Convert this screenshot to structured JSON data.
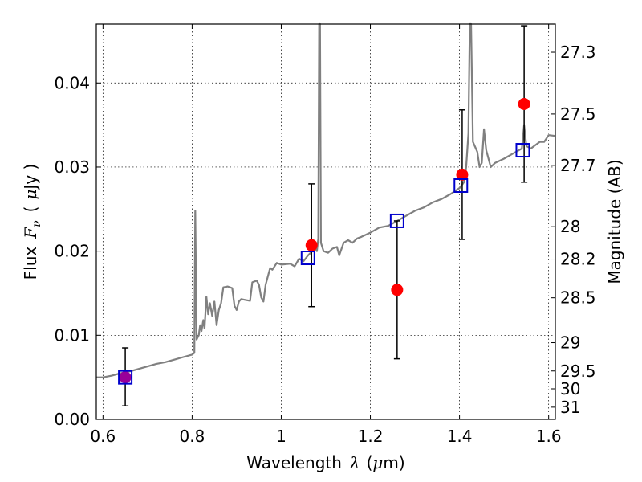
{
  "chart_data": {
    "type": "scatter",
    "xlabel_text": "Wavelength",
    "xlabel_symbol": "λ",
    "xlabel_unit_open": "(",
    "xlabel_unit_mu": "μ",
    "xlabel_unit_rest": "m)",
    "ylabel_text": "Flux",
    "ylabel_symbol": "F",
    "ylabel_subscript": "ν",
    "ylabel_unit_open": "(",
    "ylabel_unit_mu": "μ",
    "ylabel_unit_rest": "Jy )",
    "y2label": "Magnitude (AB)",
    "xlim": [
      0.585,
      1.615
    ],
    "ylim": [
      0.0,
      0.047
    ],
    "grid": true,
    "x_ticks": [
      {
        "value": 0.6,
        "label": "0.6"
      },
      {
        "value": 0.8,
        "label": "0.8"
      },
      {
        "value": 1.0,
        "label": "1"
      },
      {
        "value": 1.2,
        "label": "1.2"
      },
      {
        "value": 1.4,
        "label": "1.4"
      },
      {
        "value": 1.6,
        "label": "1.6"
      }
    ],
    "y_ticks": [
      {
        "value": 0.0,
        "label": "0.00"
      },
      {
        "value": 0.01,
        "label": "0.01"
      },
      {
        "value": 0.02,
        "label": "0.02"
      },
      {
        "value": 0.03,
        "label": "0.03"
      },
      {
        "value": 0.04,
        "label": "0.04"
      }
    ],
    "y2_ticks": [
      {
        "value": 27.3,
        "label": "27.3"
      },
      {
        "value": 27.5,
        "label": "27.5"
      },
      {
        "value": 27.7,
        "label": "27.7"
      },
      {
        "value": 28.0,
        "label": "28"
      },
      {
        "value": 28.2,
        "label": "28.2"
      },
      {
        "value": 28.5,
        "label": "28.5"
      },
      {
        "value": 29.0,
        "label": "29"
      },
      {
        "value": 29.5,
        "label": "29.5"
      },
      {
        "value": 30.0,
        "label": "30"
      },
      {
        "value": 31.0,
        "label": "31"
      }
    ],
    "spectrum": {
      "color": "#808080",
      "points": [
        [
          0.585,
          0.005
        ],
        [
          0.6,
          0.005
        ],
        [
          0.62,
          0.0052
        ],
        [
          0.64,
          0.0055
        ],
        [
          0.66,
          0.0057
        ],
        [
          0.68,
          0.006
        ],
        [
          0.7,
          0.0063
        ],
        [
          0.72,
          0.0066
        ],
        [
          0.74,
          0.0068
        ],
        [
          0.76,
          0.0071
        ],
        [
          0.78,
          0.0074
        ],
        [
          0.8,
          0.0077
        ],
        [
          0.805,
          0.0079
        ],
        [
          0.807,
          0.0248
        ],
        [
          0.81,
          0.0095
        ],
        [
          0.815,
          0.01
        ],
        [
          0.818,
          0.0112
        ],
        [
          0.821,
          0.0105
        ],
        [
          0.825,
          0.0118
        ],
        [
          0.828,
          0.0108
        ],
        [
          0.832,
          0.0146
        ],
        [
          0.836,
          0.0125
        ],
        [
          0.84,
          0.0138
        ],
        [
          0.845,
          0.0123
        ],
        [
          0.85,
          0.014
        ],
        [
          0.855,
          0.0112
        ],
        [
          0.86,
          0.013
        ],
        [
          0.865,
          0.0138
        ],
        [
          0.87,
          0.0157
        ],
        [
          0.88,
          0.0158
        ],
        [
          0.89,
          0.0156
        ],
        [
          0.895,
          0.0135
        ],
        [
          0.9,
          0.013
        ],
        [
          0.905,
          0.014
        ],
        [
          0.91,
          0.0143
        ],
        [
          0.92,
          0.0142
        ],
        [
          0.93,
          0.0141
        ],
        [
          0.935,
          0.0163
        ],
        [
          0.945,
          0.0165
        ],
        [
          0.95,
          0.016
        ],
        [
          0.955,
          0.0145
        ],
        [
          0.96,
          0.014
        ],
        [
          0.965,
          0.016
        ],
        [
          0.975,
          0.018
        ],
        [
          0.98,
          0.0178
        ],
        [
          0.99,
          0.0186
        ],
        [
          1.0,
          0.0184
        ],
        [
          1.02,
          0.0185
        ],
        [
          1.03,
          0.0182
        ],
        [
          1.04,
          0.0191
        ],
        [
          1.05,
          0.0188
        ],
        [
          1.06,
          0.0195
        ],
        [
          1.07,
          0.02
        ],
        [
          1.075,
          0.0205
        ],
        [
          1.08,
          0.02
        ],
        [
          1.083,
          0.0215
        ],
        [
          1.085,
          0.0475
        ],
        [
          1.087,
          0.0475
        ],
        [
          1.089,
          0.021
        ],
        [
          1.095,
          0.02
        ],
        [
          1.105,
          0.0198
        ],
        [
          1.115,
          0.0203
        ],
        [
          1.125,
          0.0205
        ],
        [
          1.13,
          0.0195
        ],
        [
          1.14,
          0.021
        ],
        [
          1.15,
          0.0213
        ],
        [
          1.16,
          0.021
        ],
        [
          1.17,
          0.0215
        ],
        [
          1.18,
          0.0217
        ],
        [
          1.2,
          0.0222
        ],
        [
          1.22,
          0.0228
        ],
        [
          1.24,
          0.023
        ],
        [
          1.26,
          0.0236
        ],
        [
          1.28,
          0.0242
        ],
        [
          1.3,
          0.0248
        ],
        [
          1.32,
          0.0252
        ],
        [
          1.34,
          0.0258
        ],
        [
          1.36,
          0.0262
        ],
        [
          1.38,
          0.0268
        ],
        [
          1.4,
          0.0275
        ],
        [
          1.41,
          0.0282
        ],
        [
          1.415,
          0.03
        ],
        [
          1.42,
          0.034
        ],
        [
          1.423,
          0.047
        ],
        [
          1.426,
          0.047
        ],
        [
          1.43,
          0.033
        ],
        [
          1.44,
          0.0318
        ],
        [
          1.445,
          0.03
        ],
        [
          1.45,
          0.0305
        ],
        [
          1.455,
          0.0345
        ],
        [
          1.46,
          0.032
        ],
        [
          1.47,
          0.03
        ],
        [
          1.48,
          0.0305
        ],
        [
          1.5,
          0.031
        ],
        [
          1.52,
          0.0316
        ],
        [
          1.54,
          0.0322
        ],
        [
          1.545,
          0.035
        ],
        [
          1.55,
          0.0325
        ],
        [
          1.56,
          0.0322
        ],
        [
          1.57,
          0.0326
        ],
        [
          1.58,
          0.033
        ],
        [
          1.59,
          0.033
        ],
        [
          1.6,
          0.0338
        ],
        [
          1.615,
          0.0337
        ]
      ]
    },
    "observed": {
      "color": "#ff0000",
      "points": [
        {
          "x": 0.65,
          "y": 0.005,
          "yerr_low": 0.0016,
          "yerr_high": 0.0085
        },
        {
          "x": 1.068,
          "y": 0.0207,
          "yerr_low": 0.0134,
          "yerr_high": 0.028
        },
        {
          "x": 1.26,
          "y": 0.0154,
          "yerr_low": 0.0072,
          "yerr_high": 0.0236
        },
        {
          "x": 1.406,
          "y": 0.0291,
          "yerr_low": 0.0214,
          "yerr_high": 0.0368
        },
        {
          "x": 1.545,
          "y": 0.0375,
          "yerr_low": 0.0282,
          "yerr_high": 0.0468
        }
      ]
    },
    "model_bands": {
      "color": "#0000cc",
      "points": [
        {
          "x": 0.65,
          "y": 0.005
        },
        {
          "x": 1.06,
          "y": 0.0192
        },
        {
          "x": 1.26,
          "y": 0.0236
        },
        {
          "x": 1.403,
          "y": 0.0278
        },
        {
          "x": 1.542,
          "y": 0.032
        }
      ]
    },
    "overlap_marker_color": "#990099"
  }
}
